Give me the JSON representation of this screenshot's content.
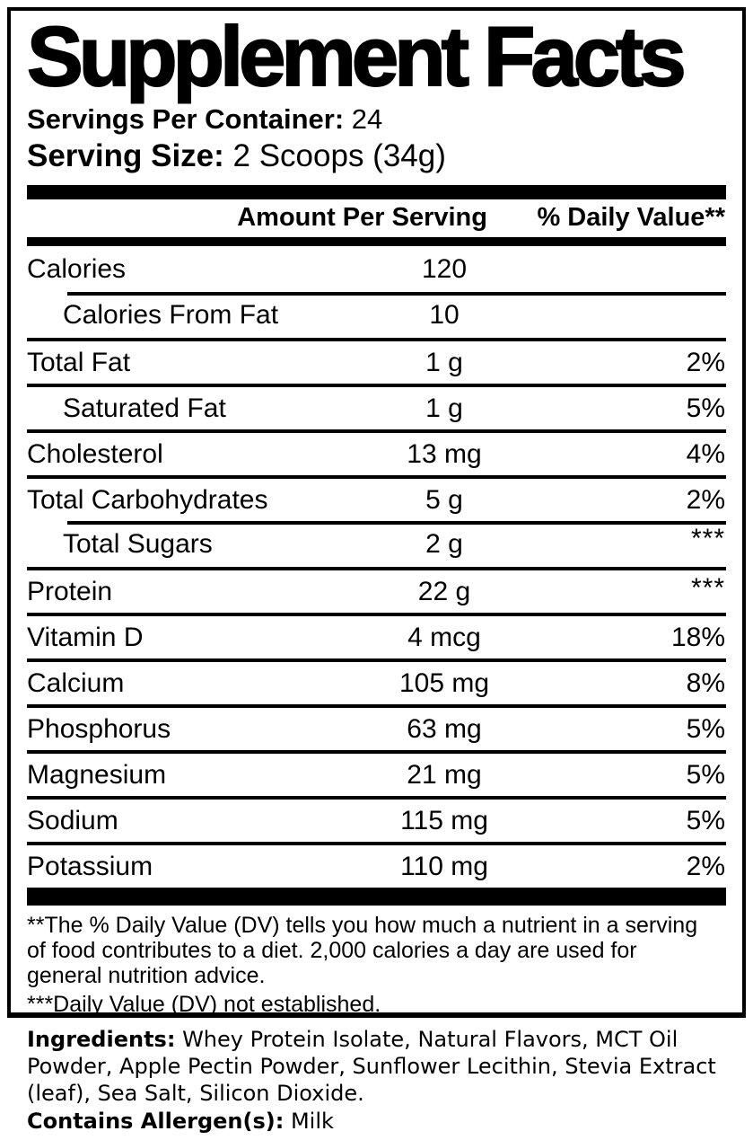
{
  "title": "Supplement Facts",
  "servings": {
    "label": "Servings Per Container:",
    "value": " 24"
  },
  "serving_size": {
    "label": "Serving Size:",
    "value": " 2 Scoops (34g)"
  },
  "table": {
    "amount_header": "Amount Per Serving",
    "dv_header": "% Daily Value**",
    "rows": [
      {
        "name": "Calories",
        "amount": "120",
        "dv": "",
        "indent": false,
        "indent_divider": false,
        "dv_super": false
      },
      {
        "name": "Calories From Fat",
        "amount": "10",
        "dv": "",
        "indent": true,
        "indent_divider": true,
        "dv_super": false
      },
      {
        "name": "Total Fat",
        "amount": "1 g",
        "dv": "2%",
        "indent": false,
        "indent_divider": false,
        "dv_super": false
      },
      {
        "name": "Saturated Fat",
        "amount": "1 g",
        "dv": "5%",
        "indent": true,
        "indent_divider": false,
        "dv_super": false
      },
      {
        "name": "Cholesterol",
        "amount": "13 mg",
        "dv": "4%",
        "indent": false,
        "indent_divider": false,
        "dv_super": false
      },
      {
        "name": "Total Carbohydrates",
        "amount": "5 g",
        "dv": "2%",
        "indent": false,
        "indent_divider": false,
        "dv_super": false
      },
      {
        "name": "Total Sugars",
        "amount": "2 g",
        "dv": "***",
        "indent": true,
        "indent_divider": true,
        "dv_super": true
      },
      {
        "name": "Protein",
        "amount": "22 g",
        "dv": "***",
        "indent": false,
        "indent_divider": false,
        "dv_super": true
      },
      {
        "name": "Vitamin D",
        "amount": "4 mcg",
        "dv": "18%",
        "indent": false,
        "indent_divider": false,
        "dv_super": false
      },
      {
        "name": "Calcium",
        "amount": "105 mg",
        "dv": "8%",
        "indent": false,
        "indent_divider": false,
        "dv_super": false
      },
      {
        "name": "Phosphorus",
        "amount": "63 mg",
        "dv": "5%",
        "indent": false,
        "indent_divider": false,
        "dv_super": false
      },
      {
        "name": "Magnesium",
        "amount": "21 mg",
        "dv": "5%",
        "indent": false,
        "indent_divider": false,
        "dv_super": false
      },
      {
        "name": "Sodium",
        "amount": "115 mg",
        "dv": "5%",
        "indent": false,
        "indent_divider": false,
        "dv_super": false
      },
      {
        "name": "Potassium",
        "amount": "110 mg",
        "dv": "2%",
        "indent": false,
        "indent_divider": false,
        "dv_super": false
      }
    ]
  },
  "footnotes": {
    "daily_value": "**The % Daily Value (DV) tells you how much a nutrient in a serving of food contributes to a diet. 2,000 calories a day are used for general nutrition advice.",
    "not_established": "***Daily Value (DV) not established."
  },
  "ingredients": {
    "label": "Ingredients:",
    "text": " Whey Protein Isolate, Natural Flavors, MCT Oil Powder, Apple Pectin Powder, Sunflower Lecithin, Stevia Extract (leaf), Sea Salt, Silicon Dioxide."
  },
  "allergens": {
    "label": "Contains Allergen(s):",
    "value": " Milk"
  },
  "colors": {
    "text": "#000000",
    "background": "#ffffff"
  }
}
